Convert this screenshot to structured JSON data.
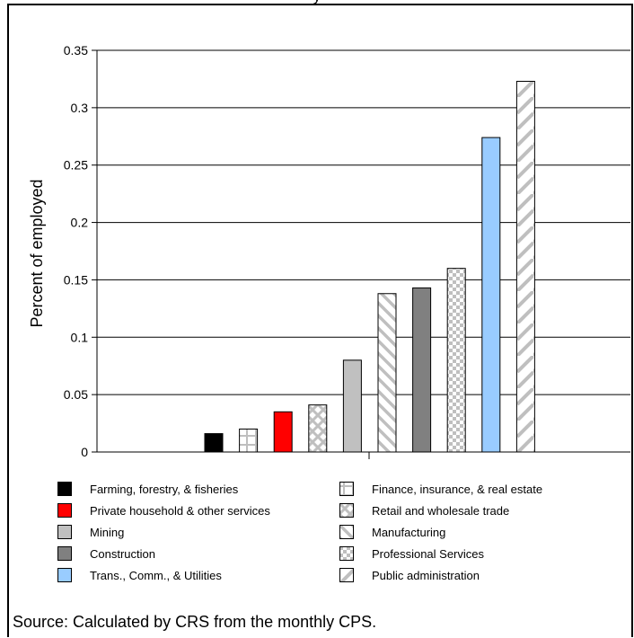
{
  "chart_data": {
    "type": "bar",
    "title_fragment": "y",
    "ylabel": "Percent of employed",
    "ylim": [
      0,
      0.35
    ],
    "yticks": [
      "0",
      "0.05",
      "0.1",
      "0.15",
      "0.2",
      "0.25",
      "0.3",
      "0.35"
    ],
    "grid": true,
    "categories": [
      "Farming, forestry, & fisheries",
      "Finance, insurance, & real estate",
      "Private household & other services",
      "Retail and wholesale trade",
      "Mining",
      "Manufacturing",
      "Construction",
      "Professional Services",
      "Trans., Comm., & Utilities",
      "Public administration"
    ],
    "values": [
      0.016,
      0.02,
      0.035,
      0.041,
      0.08,
      0.138,
      0.143,
      0.16,
      0.274,
      0.323
    ],
    "patterns": [
      "solid-black",
      "grid",
      "solid-red",
      "cross",
      "solid-lightgray",
      "diagonal-back",
      "solid-darkgray",
      "checker",
      "solid-lightblue",
      "diagonal-forward"
    ],
    "colors": {
      "black": "#000000",
      "red": "#ff0000",
      "lightgray": "#c0c0c0",
      "darkgray": "#808080",
      "lightblue": "#99ccff",
      "pattern_gray": "#bfbfbf"
    },
    "legend": [
      {
        "label": "Farming, forestry, & fisheries",
        "pattern": "solid-black"
      },
      {
        "label": "Private household & other services",
        "pattern": "solid-red"
      },
      {
        "label": "Mining",
        "pattern": "solid-lightgray"
      },
      {
        "label": "Construction",
        "pattern": "solid-darkgray"
      },
      {
        "label": "Trans., Comm., & Utilities",
        "pattern": "solid-lightblue"
      },
      {
        "label": "Finance, insurance, & real estate",
        "pattern": "grid"
      },
      {
        "label": "Retail and wholesale trade",
        "pattern": "cross"
      },
      {
        "label": "Manufacturing",
        "pattern": "diagonal-back"
      },
      {
        "label": "Professional Services",
        "pattern": "checker"
      },
      {
        "label": "Public administration",
        "pattern": "diagonal-forward"
      }
    ],
    "legend_placement": "bottom"
  },
  "source": "Source:   Calculated by CRS from the monthly CPS."
}
